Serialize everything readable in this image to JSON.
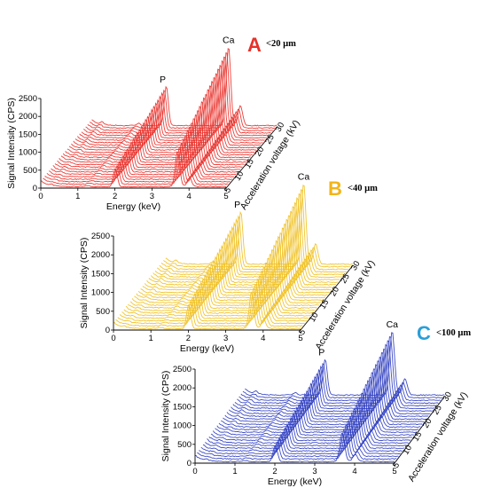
{
  "chart_data": [
    {
      "panel": "A",
      "particle_size": "<20 µm",
      "type": "line",
      "style": "waterfall (3D stacked spectra)",
      "xlabel": "Energy (keV)",
      "ylabel": "Signal Intensity (CPS)",
      "zlabel": "Acceleration voltage (kV)",
      "x_ticks": [
        0,
        1,
        2,
        3,
        4,
        5
      ],
      "y_ticks": [
        0,
        500,
        1000,
        1500,
        2000,
        2500
      ],
      "z_ticks": [
        5,
        10,
        15,
        20,
        25,
        30
      ],
      "xlim": [
        0,
        5
      ],
      "ylim": [
        0,
        2500
      ],
      "zlim": [
        5,
        30
      ],
      "series_count": 26,
      "peaks": [
        {
          "label": "P",
          "energy_keV": 2.01,
          "max_cps": 1100
        },
        {
          "label": "Ca",
          "energy_keV": 3.69,
          "max_cps": 2200
        }
      ],
      "color": "#e8302a"
    },
    {
      "panel": "B",
      "particle_size": "<40 µm",
      "type": "line",
      "style": "waterfall (3D stacked spectra)",
      "xlabel": "Energy (keV)",
      "ylabel": "Signal Intensity (CPS)",
      "zlabel": "Acceleration voltage (kV)",
      "x_ticks": [
        0,
        1,
        2,
        3,
        4,
        5
      ],
      "y_ticks": [
        0,
        500,
        1000,
        1500,
        2000,
        2500
      ],
      "z_ticks": [
        5,
        10,
        15,
        20,
        25,
        30
      ],
      "xlim": [
        0,
        5
      ],
      "ylim": [
        0,
        2500
      ],
      "zlim": [
        5,
        30
      ],
      "series_count": 26,
      "peaks": [
        {
          "label": "P",
          "energy_keV": 2.01,
          "max_cps": 1400
        },
        {
          "label": "Ca",
          "energy_keV": 3.69,
          "max_cps": 2150
        }
      ],
      "color": "#f0c020"
    },
    {
      "panel": "C",
      "particle_size": "<100 µm",
      "type": "line",
      "style": "waterfall (3D stacked spectra)",
      "xlabel": "Energy (keV)",
      "ylabel": "Signal Intensity (CPS)",
      "zlabel": "Acceleration voltage (kV)",
      "x_ticks": [
        0,
        1,
        2,
        3,
        4,
        5
      ],
      "y_ticks": [
        0,
        500,
        1000,
        1500,
        2000,
        2500
      ],
      "z_ticks": [
        5,
        10,
        15,
        20,
        25,
        30
      ],
      "xlim": [
        0,
        5
      ],
      "ylim": [
        0,
        2500
      ],
      "zlim": [
        5,
        30
      ],
      "series_count": 26,
      "peaks": [
        {
          "label": "P",
          "energy_keV": 2.01,
          "max_cps": 950
        },
        {
          "label": "Ca",
          "energy_keV": 3.69,
          "max_cps": 1700
        }
      ],
      "color": "#2f3ec0"
    }
  ],
  "colors": {
    "letter_A": "#e8302a",
    "letter_B": "#f2b418",
    "letter_C": "#2a9fd8"
  }
}
